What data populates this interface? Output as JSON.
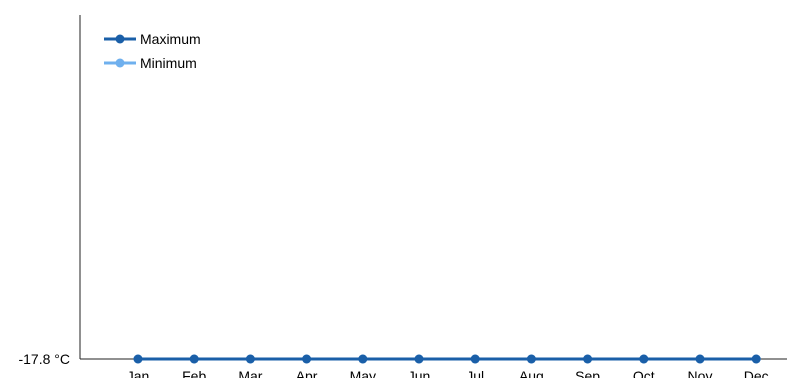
{
  "chart_data": {
    "type": "line",
    "categories": [
      "Jan",
      "Feb",
      "Mar",
      "Apr",
      "May",
      "Jun",
      "Jul",
      "Aug",
      "Sep",
      "Oct",
      "Nov",
      "Dec"
    ],
    "series": [
      {
        "name": "Maximum",
        "color": "#1a5fa8",
        "values": [
          -17.8,
          -17.8,
          -17.8,
          -17.8,
          -17.8,
          -17.8,
          -17.8,
          -17.8,
          -17.8,
          -17.8,
          -17.8,
          -17.8
        ]
      },
      {
        "name": "Minimum",
        "color": "#6fb0ee",
        "values": [
          -17.8,
          -17.8,
          -17.8,
          -17.8,
          -17.8,
          -17.8,
          -17.8,
          -17.8,
          -17.8,
          -17.8,
          -17.8,
          -17.8
        ]
      }
    ],
    "y_ticks": [
      {
        "value": -17.8,
        "label": "-17.8 °C"
      }
    ],
    "ylim": [
      -17.8,
      -10
    ],
    "legend_position": "top-left",
    "grid": false
  }
}
